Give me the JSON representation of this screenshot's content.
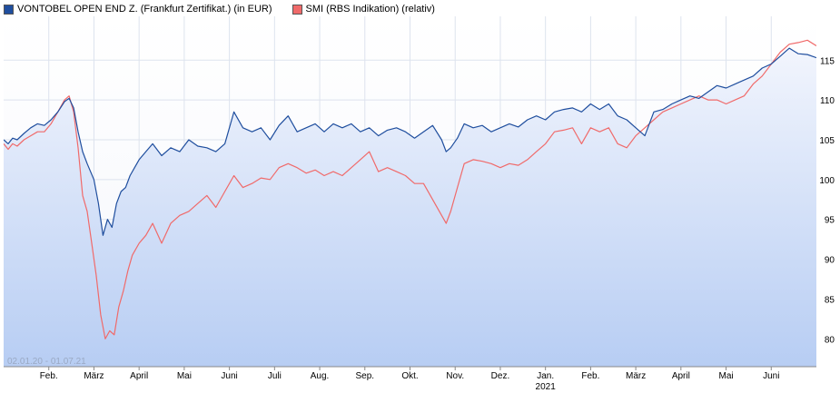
{
  "legend": {
    "series1": "VONTOBEL OPEN END Z. (Frankfurt Zertifikat.) (in EUR)",
    "series2": "SMI (RBS Indikation) (relativ)"
  },
  "date_range": "02.01.20 - 01.07.21",
  "chart_data": {
    "type": "line",
    "xlabel": "",
    "ylabel": "",
    "ylim": [
      76.5,
      120.5
    ],
    "y_ticks": [
      80,
      85,
      90,
      95,
      100,
      105,
      110,
      115
    ],
    "x_ticks": [
      {
        "label": "Feb.",
        "pos": 1.0
      },
      {
        "label": "März",
        "pos": 2.0
      },
      {
        "label": "April",
        "pos": 3.0
      },
      {
        "label": "Mai",
        "pos": 4.0
      },
      {
        "label": "Juni",
        "pos": 5.0
      },
      {
        "label": "Juli",
        "pos": 6.0
      },
      {
        "label": "Aug.",
        "pos": 7.0
      },
      {
        "label": "Sep.",
        "pos": 8.0
      },
      {
        "label": "Okt.",
        "pos": 9.0
      },
      {
        "label": "Nov.",
        "pos": 10.0
      },
      {
        "label": "Dez.",
        "pos": 11.0
      },
      {
        "label": "Jan.",
        "pos": 12.0,
        "sublabel": "2021"
      },
      {
        "label": "Feb.",
        "pos": 13.0
      },
      {
        "label": "März",
        "pos": 14.0
      },
      {
        "label": "April",
        "pos": 15.0
      },
      {
        "label": "Mai",
        "pos": 16.0
      },
      {
        "label": "Juni",
        "pos": 17.0
      }
    ],
    "xlim": [
      0.0,
      18.0
    ],
    "grid": true,
    "legend_position": "top-left",
    "series": [
      {
        "name": "VONTOBEL OPEN END Z. (Frankfurt Zertifikat.) (in EUR)",
        "color": "#1f4e9e",
        "fill": true,
        "x": [
          0.0,
          0.1,
          0.2,
          0.3,
          0.45,
          0.6,
          0.75,
          0.9,
          1.05,
          1.2,
          1.35,
          1.45,
          1.55,
          1.65,
          1.75,
          1.85,
          2.0,
          2.1,
          2.2,
          2.3,
          2.4,
          2.5,
          2.6,
          2.7,
          2.8,
          2.9,
          3.0,
          3.15,
          3.3,
          3.5,
          3.7,
          3.9,
          4.1,
          4.3,
          4.5,
          4.7,
          4.9,
          5.1,
          5.3,
          5.5,
          5.7,
          5.9,
          6.1,
          6.3,
          6.5,
          6.7,
          6.9,
          7.1,
          7.3,
          7.5,
          7.7,
          7.9,
          8.1,
          8.3,
          8.5,
          8.7,
          8.9,
          9.1,
          9.3,
          9.5,
          9.7,
          9.8,
          9.9,
          10.05,
          10.2,
          10.4,
          10.6,
          10.8,
          11.0,
          11.2,
          11.4,
          11.6,
          11.8,
          12.0,
          12.2,
          12.4,
          12.6,
          12.8,
          13.0,
          13.2,
          13.4,
          13.6,
          13.8,
          14.0,
          14.2,
          14.4,
          14.6,
          14.8,
          15.0,
          15.2,
          15.4,
          15.6,
          15.8,
          16.0,
          16.2,
          16.4,
          16.6,
          16.8,
          17.0,
          17.2,
          17.4,
          17.6,
          17.8,
          18.0
        ],
        "y": [
          105.0,
          104.5,
          105.2,
          105.0,
          105.8,
          106.5,
          107.0,
          106.8,
          107.5,
          108.5,
          109.8,
          110.2,
          109.0,
          106.0,
          103.5,
          102.0,
          100.0,
          97.0,
          93.0,
          95.0,
          94.0,
          97.0,
          98.5,
          99.0,
          100.5,
          101.5,
          102.5,
          103.5,
          104.5,
          103.0,
          104.0,
          103.5,
          105.0,
          104.2,
          104.0,
          103.5,
          104.5,
          108.5,
          106.5,
          106.0,
          106.5,
          105.0,
          106.8,
          108.0,
          106.0,
          106.5,
          107.0,
          106.0,
          107.0,
          106.5,
          107.0,
          106.0,
          106.5,
          105.5,
          106.2,
          106.5,
          106.0,
          105.2,
          106.0,
          106.8,
          105.0,
          103.5,
          104.0,
          105.2,
          107.0,
          106.5,
          106.8,
          106.0,
          106.5,
          107.0,
          106.6,
          107.5,
          108.0,
          107.5,
          108.5,
          108.8,
          109.0,
          108.5,
          109.5,
          108.8,
          109.5,
          108.0,
          107.5,
          106.5,
          105.5,
          108.5,
          108.8,
          109.5,
          110.0,
          110.5,
          110.2,
          111.0,
          111.8,
          111.5,
          112.0,
          112.5,
          113.0,
          114.0,
          114.5,
          115.5,
          116.5,
          115.8,
          115.7,
          115.3
        ]
      },
      {
        "name": "SMI (RBS Indikation) (relativ)",
        "color": "#f06a6a",
        "fill": false,
        "x": [
          0.0,
          0.1,
          0.2,
          0.3,
          0.45,
          0.6,
          0.75,
          0.9,
          1.05,
          1.2,
          1.35,
          1.45,
          1.55,
          1.65,
          1.75,
          1.85,
          1.95,
          2.05,
          2.15,
          2.25,
          2.35,
          2.45,
          2.55,
          2.65,
          2.75,
          2.85,
          3.0,
          3.15,
          3.3,
          3.5,
          3.7,
          3.9,
          4.1,
          4.3,
          4.5,
          4.7,
          4.9,
          5.1,
          5.3,
          5.5,
          5.7,
          5.9,
          6.1,
          6.3,
          6.5,
          6.7,
          6.9,
          7.1,
          7.3,
          7.5,
          7.7,
          7.9,
          8.1,
          8.3,
          8.5,
          8.7,
          8.9,
          9.1,
          9.3,
          9.5,
          9.7,
          9.8,
          9.9,
          10.05,
          10.2,
          10.4,
          10.6,
          10.8,
          11.0,
          11.2,
          11.4,
          11.6,
          11.8,
          12.0,
          12.2,
          12.4,
          12.6,
          12.8,
          13.0,
          13.2,
          13.4,
          13.6,
          13.8,
          14.0,
          14.2,
          14.4,
          14.6,
          14.8,
          15.0,
          15.2,
          15.4,
          15.6,
          15.8,
          16.0,
          16.2,
          16.4,
          16.6,
          16.8,
          17.0,
          17.2,
          17.4,
          17.6,
          17.8,
          18.0
        ],
        "y": [
          104.5,
          103.8,
          104.5,
          104.2,
          105.0,
          105.5,
          106.0,
          106.0,
          107.0,
          108.5,
          110.0,
          110.5,
          108.5,
          104.0,
          98.0,
          96.0,
          92.0,
          88.0,
          83.0,
          80.0,
          81.0,
          80.5,
          84.0,
          86.0,
          88.5,
          90.5,
          92.0,
          93.0,
          94.5,
          92.0,
          94.5,
          95.5,
          96.0,
          97.0,
          98.0,
          96.5,
          98.5,
          100.5,
          99.0,
          99.5,
          100.2,
          100.0,
          101.5,
          102.0,
          101.5,
          100.8,
          101.2,
          100.5,
          101.0,
          100.5,
          101.5,
          102.5,
          103.5,
          101.0,
          101.5,
          101.0,
          100.5,
          99.5,
          99.5,
          97.5,
          95.5,
          94.5,
          96.0,
          99.0,
          102.0,
          102.5,
          102.3,
          102.0,
          101.5,
          102.0,
          101.8,
          102.5,
          103.5,
          104.5,
          106.0,
          106.2,
          106.5,
          104.5,
          106.5,
          106.0,
          106.5,
          104.5,
          104.0,
          105.5,
          106.5,
          107.5,
          108.5,
          109.0,
          109.5,
          110.0,
          110.5,
          110.0,
          110.0,
          109.5,
          110.0,
          110.5,
          112.0,
          113.0,
          114.5,
          116.0,
          117.0,
          117.2,
          117.5,
          116.8
        ]
      }
    ]
  }
}
